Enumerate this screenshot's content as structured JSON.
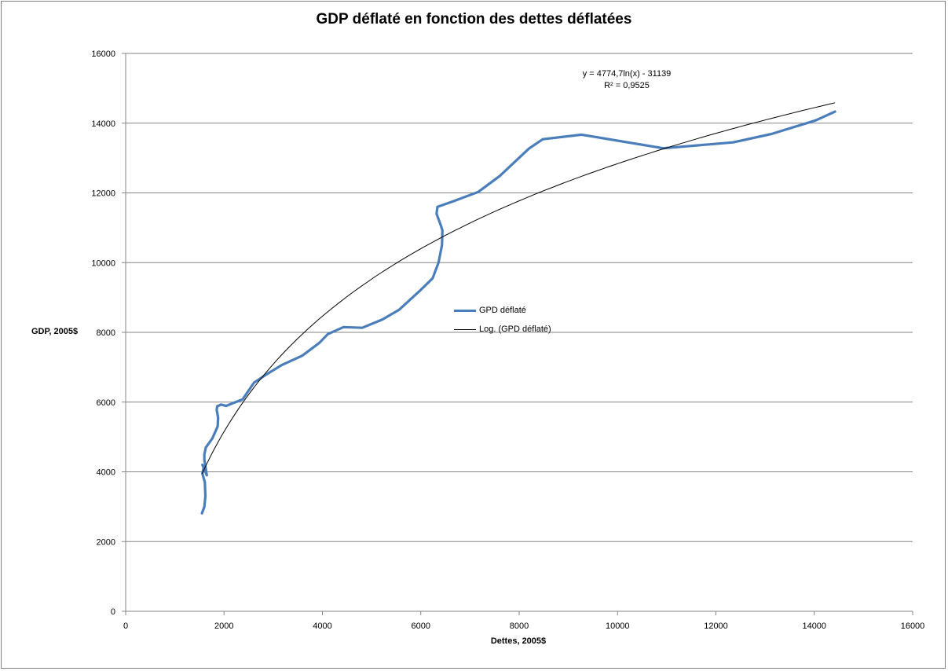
{
  "chart_data": {
    "type": "line",
    "title": "GDP déflaté en fonction des dettes déflatées",
    "xlabel": "Dettes, 2005$",
    "ylabel": "GDP, 2005$",
    "xlim": [
      0,
      16000
    ],
    "ylim": [
      0,
      16000
    ],
    "xticks": [
      "0",
      "2000",
      "4000",
      "6000",
      "8000",
      "10000",
      "12000",
      "14000",
      "16000"
    ],
    "yticks": [
      "0",
      "2000",
      "4000",
      "6000",
      "8000",
      "10000",
      "12000",
      "14000",
      "16000"
    ],
    "grid": "horizontal",
    "legend_position": "center",
    "series": [
      {
        "name": "GPD déflaté",
        "color": "#4a7ebb",
        "x": [
          1550,
          1600,
          1620,
          1610,
          1560,
          1590,
          1590,
          1560,
          1650,
          1600,
          1600,
          1630,
          1760,
          1870,
          1880,
          1850,
          1860,
          1940,
          2040,
          2380,
          2610,
          2880,
          3170,
          3590,
          3940,
          4110,
          4430,
          4810,
          5220,
          5560,
          6000,
          6240,
          6360,
          6430,
          6440,
          6410,
          6320,
          6340,
          6680,
          7170,
          7600,
          8200,
          8480,
          9270,
          10930,
          12350,
          13130,
          14030,
          14420
        ],
        "y": [
          2810,
          3000,
          3300,
          3700,
          3950,
          4150,
          4100,
          4200,
          3900,
          4350,
          4500,
          4700,
          4950,
          5300,
          5550,
          5780,
          5880,
          5930,
          5890,
          6080,
          6560,
          6810,
          7060,
          7330,
          7700,
          7950,
          8150,
          8130,
          8370,
          8650,
          9220,
          9550,
          10000,
          10500,
          10920,
          11060,
          11400,
          11600,
          11770,
          12030,
          12480,
          13270,
          13540,
          13670,
          13280,
          13450,
          13690,
          14080,
          14330
        ]
      },
      {
        "name": "Log. (GPD déflaté)",
        "color": "#000000",
        "trendline": "logarithmic",
        "equation": "y = 4774,7ln(x) - 31139",
        "r2": "R² = 0,9525",
        "a": 4774.7,
        "b": -31139,
        "x_range": [
          1550,
          14420
        ]
      }
    ]
  }
}
